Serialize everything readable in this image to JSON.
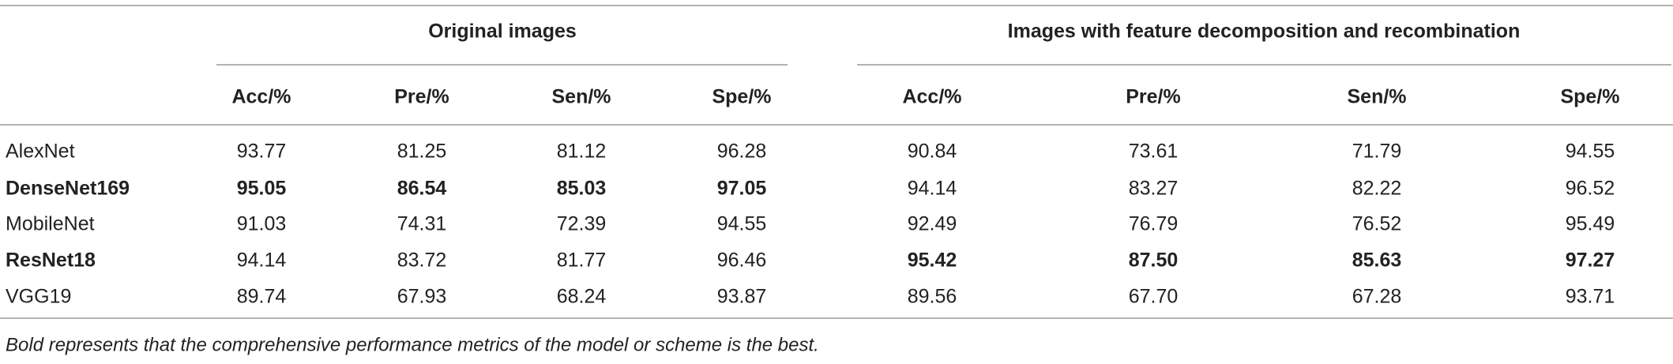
{
  "table": {
    "group_headers": [
      "Original images",
      "Images with feature decomposition and recombination"
    ],
    "columns": [
      "Acc/%",
      "Pre/%",
      "Sen/%",
      "Spe/%",
      "Acc/%",
      "Pre/%",
      "Sen/%",
      "Spe/%"
    ],
    "rows": [
      [
        "AlexNet",
        "93.77",
        "81.25",
        "81.12",
        "96.28",
        "90.84",
        "73.61",
        "71.79",
        "94.55"
      ],
      [
        "DenseNet169",
        "95.05",
        "86.54",
        "85.03",
        "97.05",
        "94.14",
        "83.27",
        "82.22",
        "96.52"
      ],
      [
        "MobileNet",
        "91.03",
        "74.31",
        "72.39",
        "94.55",
        "92.49",
        "76.79",
        "76.52",
        "95.49"
      ],
      [
        "ResNet18",
        "94.14",
        "83.72",
        "81.77",
        "96.46",
        "95.42",
        "87.50",
        "85.63",
        "97.27"
      ],
      [
        "VGG19",
        "89.74",
        "67.93",
        "68.24",
        "93.87",
        "89.56",
        "67.70",
        "67.28",
        "93.71"
      ]
    ]
  },
  "footnote": "Bold represents that the comprehensive performance metrics of the model or scheme is the best."
}
